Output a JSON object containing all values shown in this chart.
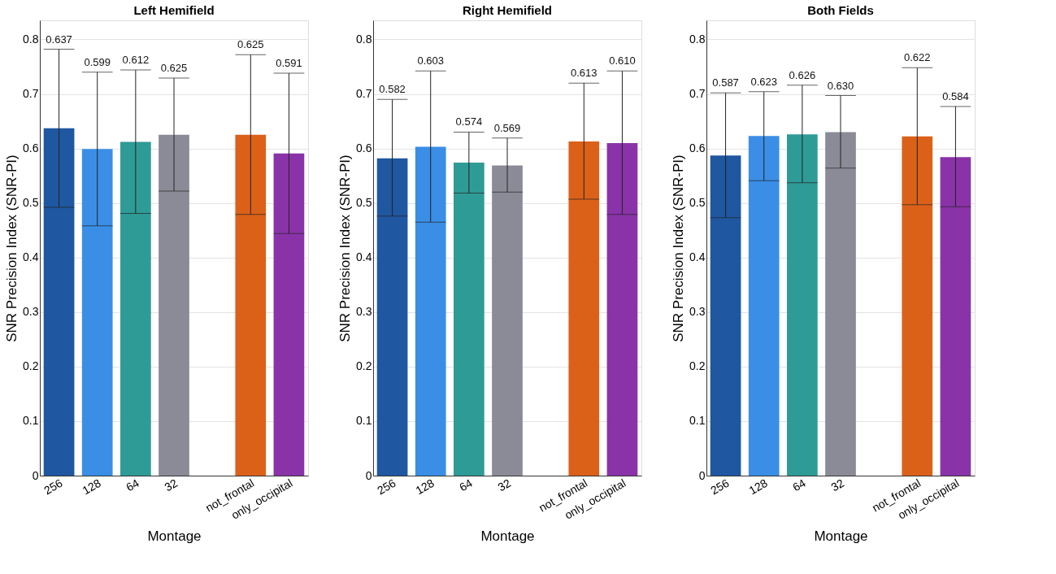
{
  "chart_data": [
    {
      "type": "bar",
      "title": "Left Hemifield",
      "xlabel": "Montage",
      "ylabel": "SNR Precision Index (SNR-PI)",
      "categories": [
        "256",
        "128",
        "64",
        "32",
        null,
        "not_frontal",
        "only_occipital"
      ],
      "values": [
        0.637,
        0.599,
        0.612,
        0.625,
        null,
        0.625,
        0.591
      ],
      "errors": [
        [
          0.492,
          0.782
        ],
        [
          0.458,
          0.74
        ],
        [
          0.481,
          0.744
        ],
        [
          0.522,
          0.729
        ],
        null,
        [
          0.479,
          0.772
        ],
        [
          0.444,
          0.738
        ]
      ],
      "colors": [
        "#1f57a0",
        "#3a8ee6",
        "#2e9b96",
        "#8b8b98",
        "#ffffff",
        "#db6119",
        "#8a33a8"
      ],
      "ylim": [
        0,
        0.835
      ],
      "yticks": [
        0,
        0.1,
        0.2,
        0.3,
        0.4,
        0.5,
        0.6,
        0.7,
        0.8
      ],
      "grid": "y",
      "legend": false,
      "annotations": [
        {
          "text": "0.637",
          "x": "256",
          "y": 0.782
        },
        {
          "text": "0.599",
          "x": "128",
          "y": 0.74
        },
        {
          "text": "0.612",
          "x": "64",
          "y": 0.744
        },
        {
          "text": "0.625",
          "x": "32",
          "y": 0.729
        },
        {
          "text": "0.625",
          "x": "not_frontal",
          "y": 0.772
        },
        {
          "text": "0.591",
          "x": "only_occipital",
          "y": 0.738
        }
      ]
    },
    {
      "type": "bar",
      "title": "Right Hemifield",
      "xlabel": "Montage",
      "ylabel": "SNR Precision Index (SNR-PI)",
      "categories": [
        "256",
        "128",
        "64",
        "32",
        null,
        "not_frontal",
        "only_occipital"
      ],
      "values": [
        0.582,
        0.603,
        0.574,
        0.569,
        null,
        0.613,
        0.61
      ],
      "errors": [
        [
          0.476,
          0.69
        ],
        [
          0.465,
          0.742
        ],
        [
          0.518,
          0.63
        ],
        [
          0.52,
          0.619
        ],
        null,
        [
          0.507,
          0.72
        ],
        [
          0.479,
          0.742
        ]
      ],
      "colors": [
        "#1f57a0",
        "#3a8ee6",
        "#2e9b96",
        "#8b8b98",
        "#ffffff",
        "#db6119",
        "#8a33a8"
      ],
      "ylim": [
        0,
        0.835
      ],
      "yticks": [
        0,
        0.1,
        0.2,
        0.3,
        0.4,
        0.5,
        0.6,
        0.7,
        0.8
      ],
      "grid": "y",
      "legend": false,
      "annotations": [
        {
          "text": "0.582",
          "x": "256",
          "y": 0.69
        },
        {
          "text": "0.603",
          "x": "128",
          "y": 0.742
        },
        {
          "text": "0.574",
          "x": "64",
          "y": 0.63
        },
        {
          "text": "0.569",
          "x": "32",
          "y": 0.619
        },
        {
          "text": "0.613",
          "x": "not_frontal",
          "y": 0.72
        },
        {
          "text": "0.610",
          "x": "only_occipital",
          "y": 0.742
        }
      ]
    },
    {
      "type": "bar",
      "title": "Both Fields",
      "xlabel": "Montage",
      "ylabel": "SNR Precision Index (SNR-PI)",
      "categories": [
        "256",
        "128",
        "64",
        "32",
        null,
        "not_frontal",
        "only_occipital"
      ],
      "values": [
        0.587,
        0.623,
        0.626,
        0.63,
        null,
        0.622,
        0.584
      ],
      "errors": [
        [
          0.473,
          0.702
        ],
        [
          0.541,
          0.704
        ],
        [
          0.537,
          0.716
        ],
        [
          0.564,
          0.697
        ],
        null,
        [
          0.497,
          0.748
        ],
        [
          0.493,
          0.677
        ]
      ],
      "colors": [
        "#1f57a0",
        "#3a8ee6",
        "#2e9b96",
        "#8b8b98",
        "#ffffff",
        "#db6119",
        "#8a33a8"
      ],
      "ylim": [
        0,
        0.835
      ],
      "yticks": [
        0,
        0.1,
        0.2,
        0.3,
        0.4,
        0.5,
        0.6,
        0.7,
        0.8
      ],
      "grid": "y",
      "legend": false,
      "annotations": [
        {
          "text": "0.587",
          "x": "256",
          "y": 0.702
        },
        {
          "text": "0.623",
          "x": "128",
          "y": 0.704
        },
        {
          "text": "0.626",
          "x": "64",
          "y": 0.716
        },
        {
          "text": "0.630",
          "x": "32",
          "y": 0.697
        },
        {
          "text": "0.622",
          "x": "not_frontal",
          "y": 0.748
        },
        {
          "text": "0.584",
          "x": "only_occipital",
          "y": 0.677
        }
      ]
    }
  ]
}
